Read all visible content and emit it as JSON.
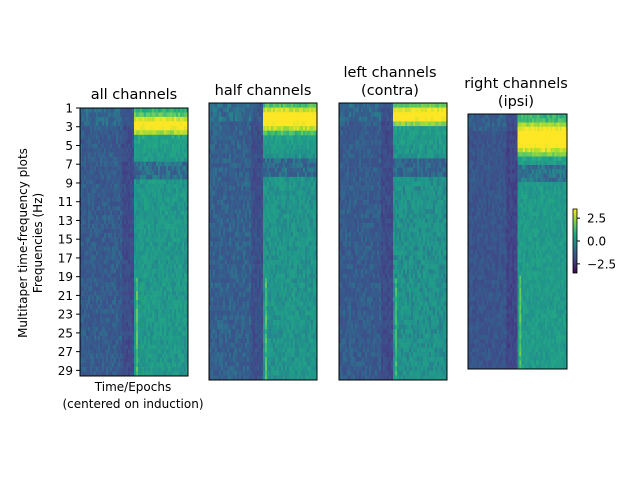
{
  "chart_data": {
    "type": "heatmap",
    "ylabel_lines": [
      "Multitaper time-frequency plots",
      "Frequencies (Hz)"
    ],
    "xlabel_lines": [
      "Time/Epochs",
      "(centered on induction)"
    ],
    "y_ticks": [
      1,
      3,
      5,
      7,
      9,
      11,
      13,
      15,
      17,
      19,
      21,
      23,
      25,
      27,
      29
    ],
    "panels": [
      {
        "title_lines": [
          "all channels"
        ],
        "induction_fraction": 0.5,
        "band_hz": [
          2.0,
          3.6
        ],
        "band_value": 3.8,
        "pre_value": -1.0,
        "post_value": 0.3
      },
      {
        "title_lines": [
          "half channels"
        ],
        "induction_fraction": 0.5,
        "band_hz": [
          1.5,
          3.8
        ],
        "band_value": 4.0,
        "pre_value": -0.9,
        "post_value": 0.2
      },
      {
        "title_lines": [
          "left channels",
          "(contra)"
        ],
        "induction_fraction": 0.5,
        "band_hz": [
          1.5,
          3.0
        ],
        "band_value": 4.0,
        "pre_value": -1.0,
        "post_value": 0.1
      },
      {
        "title_lines": [
          "right channels",
          "(ipsi)"
        ],
        "induction_fraction": 0.5,
        "band_hz": [
          2.0,
          5.5
        ],
        "band_value": 4.2,
        "pre_value": -1.2,
        "post_value": 0.4
      }
    ],
    "colorbar": {
      "cmap": "viridis",
      "vmin": -3.5,
      "vmax": 3.5,
      "ticks": [
        2.5,
        0.0,
        -2.5
      ],
      "tick_labels": [
        "2.5",
        "0.0",
        "−2.5"
      ]
    }
  }
}
